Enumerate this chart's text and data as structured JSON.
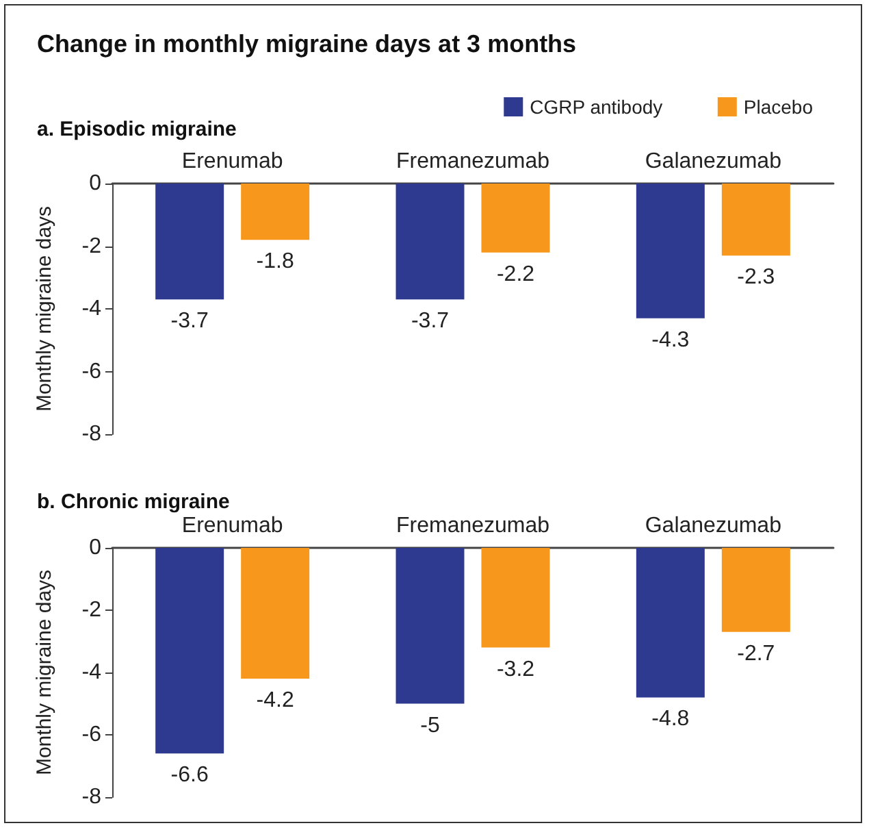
{
  "chart_data": [
    {
      "type": "bar",
      "title": "Change in monthly migraine days at 3 months",
      "subtitle": "a. Episodic migraine",
      "ylabel": "Monthly migraine days",
      "categories": [
        "Erenumab",
        "Fremanezumab",
        "Galanezumab"
      ],
      "series": [
        {
          "name": "CGRP antibody",
          "color": "#2e3a8f",
          "values": [
            -3.7,
            -3.7,
            -4.3
          ]
        },
        {
          "name": "Placebo",
          "color": "#f7981d",
          "values": [
            -1.8,
            -2.2,
            -2.3
          ]
        }
      ],
      "ylim": [
        -8,
        0
      ],
      "yticks": [
        0,
        -2,
        -4,
        -6,
        -8
      ],
      "data_labels": true,
      "legend": "top right",
      "grid": false
    },
    {
      "type": "bar",
      "title": "b. Chronic migraine",
      "ylabel": "Monthly migraine days",
      "categories": [
        "Erenumab",
        "Fremanezumab",
        "Galanezumab"
      ],
      "series": [
        {
          "color": "#2e3a8f",
          "values": [
            -6.6,
            -5,
            -4.8
          ]
        },
        {
          "color": "#f7981d",
          "values": [
            -4.2,
            -3.2,
            -2.7
          ]
        }
      ],
      "ylim": [
        -8,
        0
      ],
      "yticks": [
        0,
        -2,
        -4,
        -6,
        -8
      ],
      "data_labels": true,
      "legend": false,
      "grid": false
    }
  ]
}
